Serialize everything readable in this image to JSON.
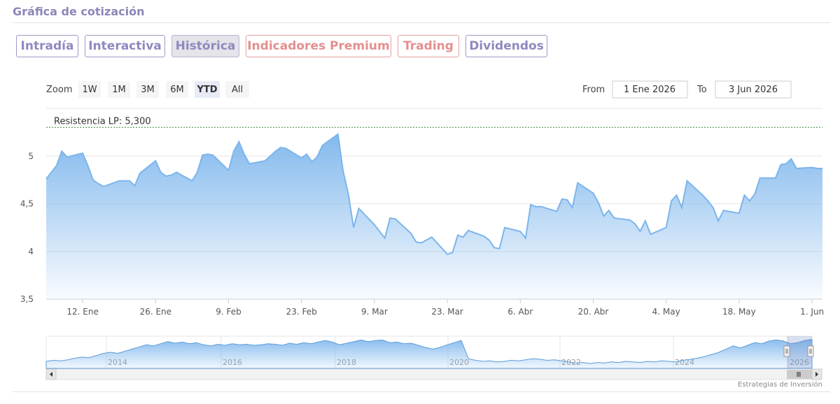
{
  "header": {
    "title": "Gráfica de cotización"
  },
  "tabs": [
    {
      "label": "Intradía",
      "color": "#8e89bf",
      "active": false
    },
    {
      "label": "Interactiva",
      "color": "#8e89bf",
      "active": false
    },
    {
      "label": "Histórica",
      "color": "#8e89bf",
      "active": true
    },
    {
      "label": "Indicadores Premium",
      "color": "#e48f8f",
      "active": false
    },
    {
      "label": "Trading",
      "color": "#e48f8f",
      "active": false
    },
    {
      "label": "Dividendos",
      "color": "#8e89bf",
      "active": false
    }
  ],
  "range_selector": {
    "zoom_label": "Zoom",
    "buttons": [
      "1W",
      "1M",
      "3M",
      "6M",
      "YTD",
      "All"
    ],
    "selected": "YTD",
    "from_label": "From",
    "from_value": "1 Ene 2026",
    "to_label": "To",
    "to_value": "3 Jun 2026"
  },
  "credit": "Estrategias de Inversión",
  "colors": {
    "line": "#7cb5ec",
    "fill_top": "#7cb5ec",
    "resistance": "#2e8b2e",
    "tab_purple": "#8e89bf",
    "tab_red": "#e48f8f"
  },
  "chart_data": {
    "type": "area",
    "x_start": "2026-01-05",
    "x_end": "2026-06-03",
    "x_tick_labels": [
      "12. Ene",
      "26. Ene",
      "9. Feb",
      "23. Feb",
      "9. Mar",
      "23. Mar",
      "6. Abr",
      "20. Abr",
      "4. May",
      "18. May",
      "1. Jun"
    ],
    "x_tick_dates": [
      "2026-01-12",
      "2026-01-26",
      "2026-02-09",
      "2026-02-23",
      "2026-03-09",
      "2026-03-23",
      "2026-04-06",
      "2026-04-20",
      "2026-05-04",
      "2026-05-18",
      "2026-06-01"
    ],
    "y_tick_labels": [
      "3,5",
      "4",
      "4,5",
      "5"
    ],
    "y_ticks": [
      3.5,
      4,
      4.5,
      5
    ],
    "ylim": [
      3.5,
      5.5
    ],
    "grid": true,
    "annotation": {
      "label": "Resistencia LP: 5,300",
      "value": 5.3
    },
    "series": [
      {
        "dates": [
          "2026-01-05",
          "2026-01-06",
          "2026-01-07",
          "2026-01-08",
          "2026-01-09",
          "2026-01-12",
          "2026-01-13",
          "2026-01-14",
          "2026-01-15",
          "2026-01-16",
          "2026-01-19",
          "2026-01-20",
          "2026-01-21",
          "2026-01-22",
          "2026-01-23",
          "2026-01-26",
          "2026-01-27",
          "2026-01-28",
          "2026-01-29",
          "2026-01-30",
          "2026-02-02",
          "2026-02-03",
          "2026-02-04",
          "2026-02-05",
          "2026-02-06",
          "2026-02-09",
          "2026-02-10",
          "2026-02-11",
          "2026-02-12",
          "2026-02-13",
          "2026-02-16",
          "2026-02-17",
          "2026-02-18",
          "2026-02-19",
          "2026-02-20",
          "2026-02-23",
          "2026-02-24",
          "2026-02-25",
          "2026-02-26",
          "2026-02-27",
          "2026-03-02",
          "2026-03-03",
          "2026-03-04",
          "2026-03-05",
          "2026-03-06",
          "2026-03-09",
          "2026-03-10",
          "2026-03-11",
          "2026-03-12",
          "2026-03-13",
          "2026-03-16",
          "2026-03-17",
          "2026-03-18",
          "2026-03-19",
          "2026-03-20",
          "2026-03-23",
          "2026-03-24",
          "2026-03-25",
          "2026-03-26",
          "2026-03-27",
          "2026-03-30",
          "2026-03-31",
          "2026-04-01",
          "2026-04-02",
          "2026-04-03",
          "2026-04-06",
          "2026-04-07",
          "2026-04-08",
          "2026-04-09",
          "2026-04-10",
          "2026-04-13",
          "2026-04-14",
          "2026-04-15",
          "2026-04-16",
          "2026-04-17",
          "2026-04-20",
          "2026-04-21",
          "2026-04-22",
          "2026-04-23",
          "2026-04-24",
          "2026-04-27",
          "2026-04-28",
          "2026-04-29",
          "2026-04-30",
          "2026-05-01",
          "2026-05-04",
          "2026-05-05",
          "2026-05-06",
          "2026-05-07",
          "2026-05-08",
          "2026-05-11",
          "2026-05-12",
          "2026-05-13",
          "2026-05-14",
          "2026-05-15",
          "2026-05-18",
          "2026-05-19",
          "2026-05-20",
          "2026-05-21",
          "2026-05-22",
          "2026-05-25",
          "2026-05-26",
          "2026-05-27",
          "2026-05-28",
          "2026-05-29",
          "2026-06-01",
          "2026-06-02",
          "2026-06-03"
        ],
        "values": [
          4.76,
          4.83,
          4.9,
          5.05,
          4.99,
          5.03,
          4.9,
          4.75,
          4.71,
          4.68,
          4.74,
          4.74,
          4.74,
          4.69,
          4.82,
          4.95,
          4.83,
          4.79,
          4.8,
          4.83,
          4.74,
          4.83,
          5.01,
          5.02,
          5.01,
          4.85,
          5.05,
          5.15,
          5.02,
          4.92,
          4.95,
          5.0,
          5.05,
          5.09,
          5.08,
          4.98,
          5.02,
          4.94,
          4.99,
          5.11,
          5.23,
          4.84,
          4.6,
          4.25,
          4.45,
          4.28,
          4.21,
          4.14,
          4.35,
          4.34,
          4.19,
          4.1,
          4.09,
          4.12,
          4.15,
          3.97,
          3.99,
          4.17,
          4.15,
          4.22,
          4.16,
          4.12,
          4.04,
          4.03,
          4.25,
          4.21,
          4.14,
          4.49,
          4.47,
          4.47,
          4.42,
          4.55,
          4.54,
          4.46,
          4.72,
          4.61,
          4.51,
          4.37,
          4.43,
          4.35,
          4.33,
          4.29,
          4.21,
          4.32,
          4.18,
          4.25,
          4.53,
          4.59,
          4.46,
          4.74,
          4.59,
          4.53,
          4.46,
          4.32,
          4.43,
          4.4,
          4.59,
          4.53,
          4.6,
          4.77,
          4.77,
          4.91,
          4.92,
          4.97,
          4.87,
          4.88,
          4.87,
          4.87
        ]
      }
    ],
    "navigator": {
      "x_tick_labels": [
        "2014",
        "2016",
        "2018",
        "2020",
        "2022",
        "2024",
        "2026"
      ],
      "values": [
        1.3,
        1.5,
        1.4,
        1.6,
        1.9,
        2.1,
        2.0,
        2.4,
        2.8,
        3.0,
        2.8,
        3.2,
        3.6,
        4.0,
        4.4,
        4.2,
        4.6,
        5.0,
        4.7,
        4.9,
        4.6,
        4.8,
        4.4,
        4.2,
        4.5,
        4.3,
        4.6,
        4.4,
        4.5,
        4.3,
        4.4,
        4.6,
        4.5,
        4.3,
        4.7,
        4.5,
        4.8,
        4.6,
        4.9,
        5.2,
        4.9,
        4.4,
        4.7,
        5.0,
        5.3,
        5.0,
        5.2,
        5.3,
        4.8,
        4.9,
        4.6,
        4.7,
        4.3,
        3.9,
        3.6,
        3.9,
        4.4,
        4.8,
        5.2,
        1.8,
        1.5,
        1.3,
        1.4,
        1.2,
        1.3,
        1.5,
        1.4,
        1.6,
        1.8,
        1.7,
        1.5,
        1.6,
        1.4,
        1.2,
        1.0,
        1.1,
        0.9,
        1.1,
        1.0,
        1.2,
        1.1,
        1.3,
        1.2,
        1.1,
        1.3,
        1.2,
        1.4,
        1.3,
        1.2,
        1.5,
        1.7,
        1.9,
        2.2,
        2.6,
        3.0,
        3.6,
        4.2,
        3.8,
        4.3,
        4.8,
        4.6,
        5.1,
        5.3,
        5.1,
        4.6,
        4.8,
        5.2,
        5.4
      ]
    }
  }
}
